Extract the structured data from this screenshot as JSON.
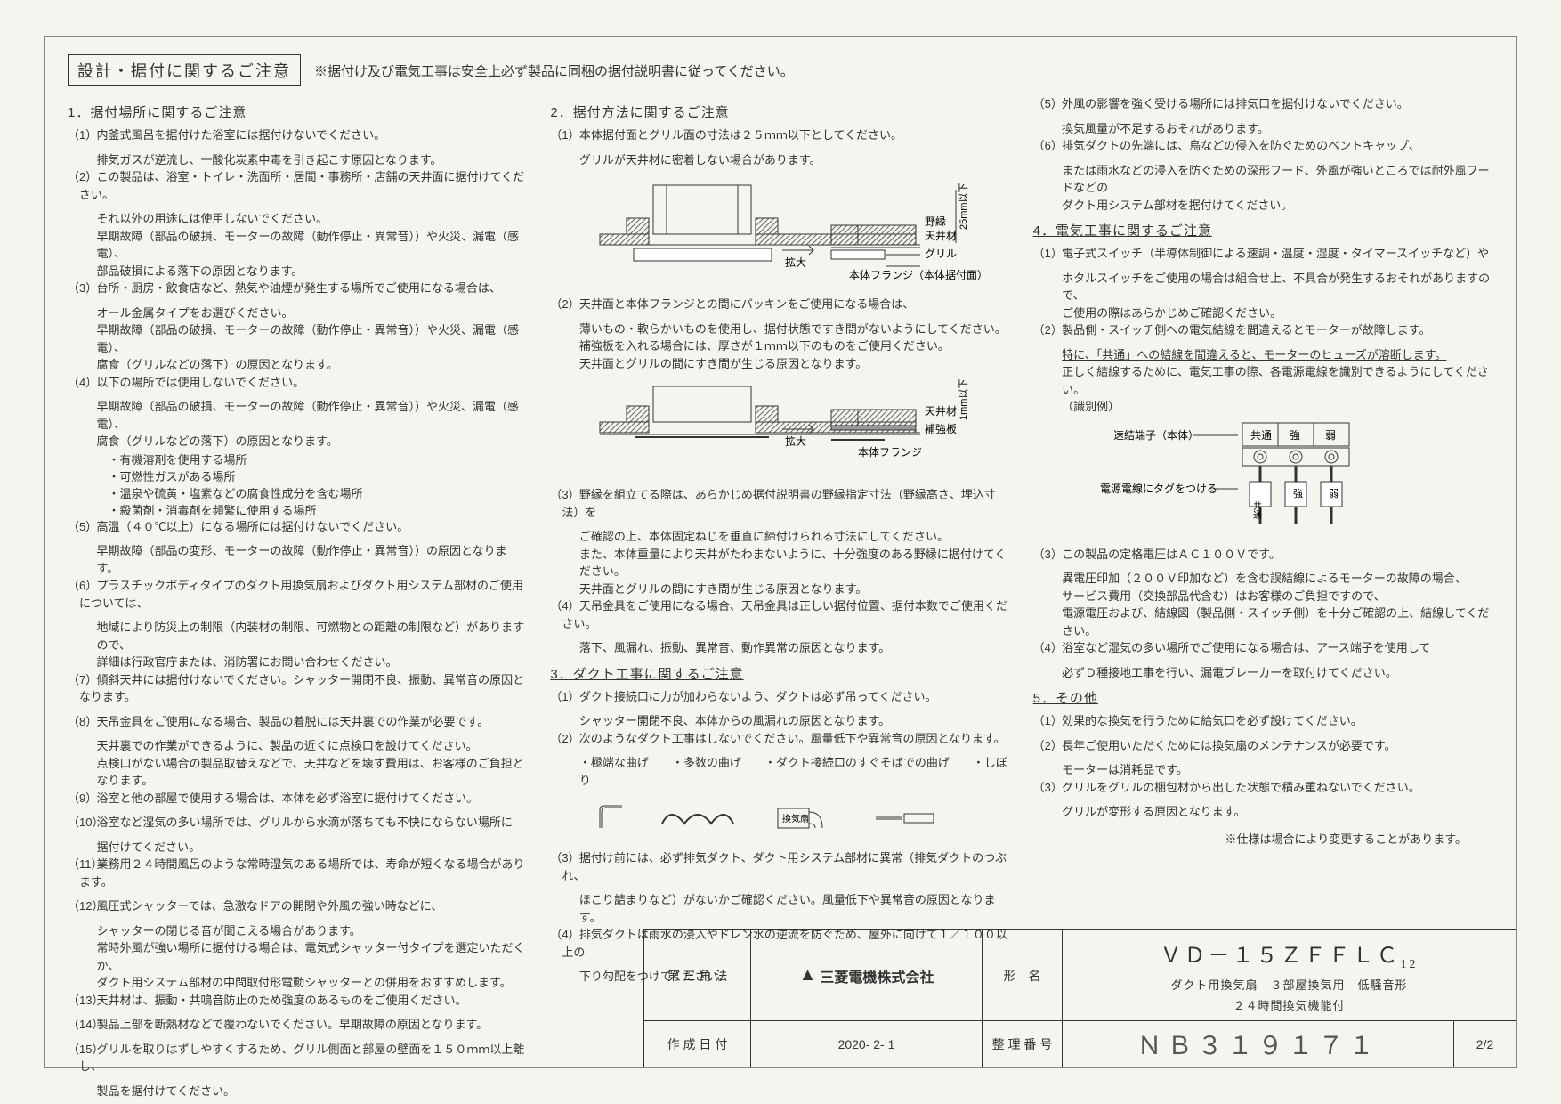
{
  "header": {
    "title_box": "設計・据付に関するご注意",
    "note": "※据付け及び電気工事は安全上必ず製品に同梱の据付説明書に従ってください。"
  },
  "col1": {
    "sec1_title": "1．据付場所に関するご注意",
    "items": [
      {
        "n": "（1）",
        "t": "内釜式風呂を据付けた浴室には据付けないでください。",
        "s": [
          "排気ガスが逆流し、一酸化炭素中毒を引き起こす原因となります。"
        ]
      },
      {
        "n": "（2）",
        "t": "この製品は、浴室・トイレ・洗面所・居間・事務所・店舗の天井面に据付けてください。",
        "s": [
          "それ以外の用途には使用しないでください。",
          "早期故障（部品の破損、モーターの故障（動作停止・異常音））や火災、漏電（感電）、",
          "部品破損による落下の原因となります。"
        ]
      },
      {
        "n": "（3）",
        "t": "台所・厨房・飲食店など、熱気や油煙が発生する場所でご使用になる場合は、",
        "s": [
          "オール金属タイプをお選びください。",
          "早期故障（部品の破損、モーターの故障（動作停止・異常音））や火災、漏電（感電）、",
          "腐食（グリルなどの落下）の原因となります。"
        ]
      },
      {
        "n": "（4）",
        "t": "以下の場所では使用しないでください。",
        "s": [
          "早期故障（部品の破損、モーターの故障（動作停止・異常音））や火災、漏電（感電）、",
          "腐食（グリルなどの落下）の原因となります。"
        ],
        "b": [
          "・有機溶剤を使用する場所",
          "・可燃性ガスがある場所",
          "・温泉や硫黄・塩素などの腐食性成分を含む場所",
          "・殺菌剤・消毒剤を頻繁に使用する場所"
        ]
      },
      {
        "n": "（5）",
        "t": "高温（４０℃以上）になる場所には据付けないでください。",
        "s": [
          "早期故障（部品の変形、モーターの故障（動作停止・異常音））の原因となります。"
        ]
      },
      {
        "n": "（6）",
        "t": "プラスチックボディタイプのダクト用換気扇およびダクト用システム部材のご使用については、",
        "s": [
          "地域により防災上の制限（内装材の制限、可燃物との距離の制限など）がありますので、",
          "詳細は行政官庁または、消防署にお問い合わせください。"
        ]
      },
      {
        "n": "（7）",
        "t": "傾斜天井には据付けないでください。シャッター開閉不良、振動、異常音の原因となります。"
      },
      {
        "n": "（8）",
        "t": "天吊金具をご使用になる場合、製品の着脱には天井裏での作業が必要です。",
        "s": [
          "天井裏での作業ができるように、製品の近くに点検口を設けてください。",
          "点検口がない場合の製品取替えなどで、天井などを壊す費用は、お客様のご負担となります。"
        ]
      },
      {
        "n": "（9）",
        "t": "浴室と他の部屋で使用する場合は、本体を必ず浴室に据付けてください。"
      },
      {
        "n": "（10）",
        "t": "浴室など湿気の多い場所では、グリルから水滴が落ちても不快にならない場所に",
        "s": [
          "据付けてください。"
        ]
      },
      {
        "n": "（11）",
        "t": "業務用２４時間風呂のような常時湿気のある場所では、寿命が短くなる場合があります。"
      },
      {
        "n": "（12）",
        "t": "風圧式シャッターでは、急激なドアの開閉や外風の強い時などに、",
        "s": [
          "シャッターの閉じる音が聞こえる場合があります。",
          "常時外風が強い場所に据付ける場合は、電気式シャッター付タイプを選定いただくか、",
          "ダクト用システム部材の中間取付形電動シャッターとの併用をおすすめします。"
        ]
      },
      {
        "n": "（13）",
        "t": "天井材は、振動・共鳴音防止のため強度のあるものをご使用ください。"
      },
      {
        "n": "（14）",
        "t": "製品上部を断熱材などで覆わないでください。早期故障の原因となります。"
      },
      {
        "n": "（15）",
        "t": "グリルを取りはずしやすくするため、グリル側面と部屋の壁面を１５０ｍｍ以上離し、",
        "s": [
          "製品を据付けてください。"
        ]
      }
    ]
  },
  "col2": {
    "sec2_title": "2．据付方法に関するご注意",
    "sec2_items": [
      {
        "n": "（1）",
        "t": "本体据付面とグリル面の寸法は２５ｍｍ以下としてください。",
        "s": [
          "グリルが天井材に密着しない場合があります。"
        ]
      },
      {
        "n": "（2）",
        "t": "天井面と本体フランジとの間にパッキンをご使用になる場合は、",
        "s": [
          "薄いもの・軟らかいものを使用し、据付状態ですき間がないようにしてください。",
          "補強板を入れる場合には、厚さが１ｍｍ以下のものをご使用ください。",
          "天井面とグリルの間にすき間が生じる原因となります。"
        ]
      },
      {
        "n": "（3）",
        "t": "野縁を組立てる際は、あらかじめ据付説明書の野縁指定寸法（野縁高さ、埋込寸法）を",
        "s": [
          "ご確認の上、本体固定ねじを垂直に締付けられる寸法にしてください。",
          "また、本体重量により天井がたわまないように、十分強度のある野縁に据付けてください。",
          "天井面とグリルの間にすき間が生じる原因となります。"
        ]
      },
      {
        "n": "（4）",
        "t": "天吊金具をご使用になる場合、天吊金具は正しい据付位置、据付本数でご使用ください。",
        "s": [
          "落下、風漏れ、振動、異常音、動作異常の原因となります。"
        ]
      }
    ],
    "sec3_title": "3．ダクト工事に関するご注意",
    "sec3_items": [
      {
        "n": "（1）",
        "t": "ダクト接続口に力が加わらないよう、ダクトは必ず吊ってください。",
        "s": [
          "シャッター開閉不良、本体からの風漏れの原因となります。"
        ]
      },
      {
        "n": "（2）",
        "t": "次のようなダクト工事はしないでください。風量低下や異常音の原因となります。",
        "s": [
          "・極端な曲げ　　・多数の曲げ　　・ダクト接続口のすぐそばでの曲げ　　・しぼり"
        ]
      },
      {
        "n": "（3）",
        "t": "据付け前には、必ず排気ダクト、ダクト用システム部材に異常（排気ダクトのつぶれ、",
        "s": [
          "ほこり詰まりなど）がないかご確認ください。風量低下や異常音の原因となります。"
        ]
      },
      {
        "n": "（4）",
        "t": "排気ダクトは雨水の浸入やドレン水の逆流を防ぐため、屋外に向けて１／１００以上の",
        "s": [
          "下り勾配をつけてください。"
        ]
      }
    ],
    "dia1_labels": {
      "a": "野縁",
      "b": "天井材",
      "c": "グリル",
      "d": "本体フランジ（本体据付面）",
      "e": "拡大",
      "f": "25mm以下"
    },
    "dia2_labels": {
      "a": "天井材",
      "b": "補強板",
      "c": "本体フランジ",
      "d": "拡大",
      "e": "1mm以下"
    }
  },
  "col3": {
    "sec3_cont": [
      {
        "n": "（5）",
        "t": "外風の影響を強く受ける場所には排気口を据付けないでください。",
        "s": [
          "換気風量が不足するおそれがあります。"
        ]
      },
      {
        "n": "（6）",
        "t": "排気ダクトの先端には、鳥などの侵入を防ぐためのベントキャップ、",
        "s": [
          "または雨水などの浸入を防ぐための深形フード、外風が強いところでは耐外風フードなどの",
          "ダクト用システム部材を据付けてください。"
        ]
      }
    ],
    "sec4_title": "4．電気工事に関するご注意",
    "sec4_items": [
      {
        "n": "（1）",
        "t": "電子式スイッチ（半導体制御による速調・温度・湿度・タイマースイッチなど）や",
        "s": [
          "ホタルスイッチをご使用の場合は組合せ上、不具合が発生するおそれがありますので、",
          "ご使用の際はあらかじめご確認ください。"
        ]
      },
      {
        "n": "（2）",
        "t": "製品側・スイッチ側への電気結線を間違えるとモーターが故障します。",
        "s_u": "特に、「共通」への結線を間違えると、モーターのヒューズが溶断します。",
        "s": [
          "正しく結線するために、電気工事の際、各電源電線を識別できるようにしてください。",
          "（識別例）"
        ]
      },
      {
        "n": "（3）",
        "t": "この製品の定格電圧はＡＣ１００Ｖです。",
        "s": [
          "異電圧印加（２００Ｖ印加など）を含む誤結線によるモーターの故障の場合、",
          "サービス費用（交換部品代含む）はお客様のご負担ですので、",
          "電源電圧および、結線図（製品側・スイッチ側）を十分ご確認の上、結線してください。"
        ]
      },
      {
        "n": "（4）",
        "t": "浴室など湿気の多い場所でご使用になる場合は、アース端子を使用して",
        "s": [
          "必ずＤ種接地工事を行い、漏電ブレーカーを取付けてください。"
        ]
      }
    ],
    "sec5_title": "5．その他",
    "sec5_items": [
      {
        "n": "（1）",
        "t": "効果的な換気を行うために給気口を必ず設けてください。"
      },
      {
        "n": "（2）",
        "t": "長年ご使用いただくためには換気扇のメンテナンスが必要です。",
        "s": [
          "モーターは消耗品です。"
        ]
      },
      {
        "n": "（3）",
        "t": "グリルをグリルの梱包材から出した状態で積み重ねないでください。",
        "s": [
          "グリルが変形する原因となります。"
        ]
      }
    ],
    "wiring": {
      "label1": "速結端子（本体）",
      "label2": "電源電線にタグをつける",
      "h1": "共通",
      "h2": "強",
      "h3": "弱",
      "t1": "共通",
      "t2": "強",
      "t3": "弱"
    }
  },
  "footer_note": "※仕様は場合により変更することがあります。",
  "title_block": {
    "proj_label": "第 三 角 法",
    "company": "三菱電機株式会社",
    "model_label": "形　名",
    "model": "ＶＤ－１５ＺＦＦＬＣ",
    "model_suffix": "12",
    "model_desc1": "ダクト用換気扇　３部屋換気用　低騒音形",
    "model_desc2": "２４時間換気機能付",
    "date_label": "作 成 日 付",
    "date": "2020- 2- 1",
    "docnum_label": "整 理 番 号",
    "docnum": "ＮＢ３１９１７１",
    "page": "2/2"
  },
  "colors": {
    "border": "#888888",
    "text": "#333333",
    "hatch": "#666666",
    "line": "#333333"
  }
}
